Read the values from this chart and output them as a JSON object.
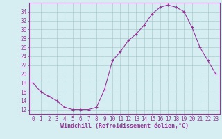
{
  "x": [
    0,
    1,
    2,
    3,
    4,
    5,
    6,
    7,
    8,
    9,
    10,
    11,
    12,
    13,
    14,
    15,
    16,
    17,
    18,
    19,
    20,
    21,
    22,
    23
  ],
  "y": [
    18,
    16,
    15,
    14,
    12.5,
    12,
    12,
    12,
    12.5,
    16.5,
    23,
    25,
    27.5,
    29,
    31,
    33.5,
    35,
    35.5,
    35,
    34,
    30.5,
    26,
    23,
    20
  ],
  "line_color": "#993399",
  "marker_color": "#993399",
  "bg_color": "#d6eef2",
  "grid_color": "#aacccc",
  "tick_label_color": "#993399",
  "xlabel": "Windchill (Refroidissement éolien,°C)",
  "xlabel_color": "#993399",
  "ylim": [
    11,
    36
  ],
  "yticks": [
    12,
    14,
    16,
    18,
    20,
    22,
    24,
    26,
    28,
    30,
    32,
    34
  ],
  "xlim": [
    -0.5,
    23.5
  ],
  "axis_fontsize": 5.5,
  "label_fontsize": 6.0
}
